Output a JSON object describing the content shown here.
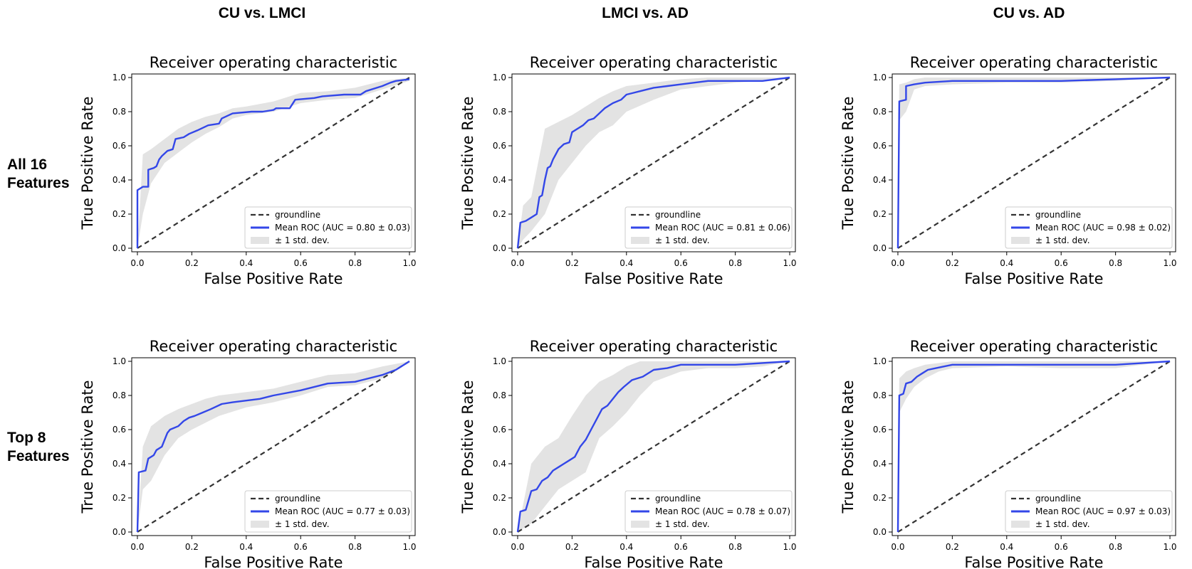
{
  "figure": {
    "column_titles": [
      "CU vs. LMCI",
      "LMCI vs. AD",
      "CU vs. AD"
    ],
    "row_labels": [
      [
        "All 16",
        "Features"
      ],
      [
        "Top 8",
        "Features"
      ]
    ]
  },
  "colors": {
    "mean_roc": "#3347e8",
    "groundline": "#333333",
    "std_band": "#e3e3e3"
  },
  "chart_data": [
    {
      "type": "line",
      "title": "Receiver operating characteristic",
      "xlabel": "False Positive Rate",
      "ylabel": "True Positive Rate",
      "xlim": [
        0,
        1
      ],
      "ylim": [
        0,
        1
      ],
      "xticks": [
        "0.0",
        "0.2",
        "0.4",
        "0.6",
        "0.8",
        "1.0"
      ],
      "yticks": [
        "0.0",
        "0.2",
        "0.4",
        "0.6",
        "0.8",
        "1.0"
      ],
      "legend_position": "lower-right",
      "series": [
        {
          "name": "groundline",
          "style": "dashed",
          "x": [
            0,
            1
          ],
          "y": [
            0,
            1
          ]
        },
        {
          "name": "Mean ROC (AUC = 0.80 ± 0.03)",
          "x": [
            0,
            0,
            0.02,
            0.04,
            0.04,
            0.06,
            0.07,
            0.08,
            0.09,
            0.11,
            0.13,
            0.14,
            0.17,
            0.19,
            0.22,
            0.26,
            0.3,
            0.31,
            0.35,
            0.42,
            0.46,
            0.5,
            0.51,
            0.56,
            0.58,
            0.65,
            0.68,
            0.76,
            0.82,
            0.84,
            0.9,
            0.93,
            0.95,
            1.0
          ],
          "y": [
            0,
            0.34,
            0.36,
            0.36,
            0.46,
            0.47,
            0.48,
            0.52,
            0.54,
            0.57,
            0.58,
            0.64,
            0.65,
            0.67,
            0.69,
            0.72,
            0.73,
            0.76,
            0.79,
            0.8,
            0.8,
            0.81,
            0.82,
            0.82,
            0.87,
            0.88,
            0.89,
            0.9,
            0.9,
            0.92,
            0.95,
            0.97,
            0.98,
            0.99
          ]
        },
        {
          "name": "± 1 std. dev.",
          "type": "band",
          "x": [
            0,
            0.02,
            0.05,
            0.1,
            0.15,
            0.2,
            0.25,
            0.3,
            0.35,
            0.4,
            0.5,
            0.6,
            0.7,
            0.8,
            0.9,
            1.0
          ],
          "lower": [
            0,
            0.2,
            0.38,
            0.5,
            0.56,
            0.62,
            0.67,
            0.71,
            0.76,
            0.78,
            0.8,
            0.85,
            0.87,
            0.88,
            0.93,
            0.98
          ],
          "upper": [
            0,
            0.55,
            0.58,
            0.64,
            0.7,
            0.74,
            0.77,
            0.79,
            0.82,
            0.83,
            0.86,
            0.91,
            0.92,
            0.94,
            0.98,
            1.0
          ]
        }
      ]
    },
    {
      "type": "line",
      "title": "Receiver operating characteristic",
      "xlabel": "False Positive Rate",
      "ylabel": "True Positive Rate",
      "xlim": [
        0,
        1
      ],
      "ylim": [
        0,
        1
      ],
      "xticks": [
        "0.0",
        "0.2",
        "0.4",
        "0.6",
        "0.8",
        "1.0"
      ],
      "yticks": [
        "0.0",
        "0.2",
        "0.4",
        "0.6",
        "0.8",
        "1.0"
      ],
      "legend_position": "lower-right",
      "series": [
        {
          "name": "groundline",
          "style": "dashed",
          "x": [
            0,
            1
          ],
          "y": [
            0,
            1
          ]
        },
        {
          "name": "Mean ROC (AUC = 0.81 ± 0.06)",
          "x": [
            0,
            0.01,
            0.03,
            0.05,
            0.07,
            0.08,
            0.09,
            0.1,
            0.11,
            0.12,
            0.13,
            0.14,
            0.15,
            0.17,
            0.19,
            0.2,
            0.22,
            0.24,
            0.26,
            0.28,
            0.3,
            0.32,
            0.35,
            0.38,
            0.4,
            0.45,
            0.5,
            0.55,
            0.6,
            0.7,
            0.76,
            0.9,
            1.0
          ],
          "y": [
            0,
            0.15,
            0.16,
            0.18,
            0.2,
            0.3,
            0.31,
            0.4,
            0.47,
            0.48,
            0.52,
            0.55,
            0.58,
            0.61,
            0.62,
            0.68,
            0.7,
            0.72,
            0.75,
            0.76,
            0.79,
            0.82,
            0.85,
            0.87,
            0.9,
            0.92,
            0.94,
            0.95,
            0.96,
            0.98,
            0.98,
            0.98,
            1.0
          ]
        },
        {
          "name": "± 1 std. dev.",
          "type": "band",
          "x": [
            0,
            0.02,
            0.05,
            0.1,
            0.15,
            0.2,
            0.25,
            0.3,
            0.35,
            0.4,
            0.5,
            0.6,
            0.7,
            0.8,
            0.9,
            1.0
          ],
          "lower": [
            0,
            0.05,
            0.1,
            0.2,
            0.4,
            0.5,
            0.6,
            0.68,
            0.72,
            0.8,
            0.87,
            0.93,
            0.95,
            0.97,
            0.98,
            1.0
          ],
          "upper": [
            0,
            0.25,
            0.3,
            0.7,
            0.74,
            0.78,
            0.83,
            0.88,
            0.92,
            0.95,
            0.97,
            0.99,
            1.0,
            1.0,
            1.0,
            1.0
          ]
        }
      ]
    },
    {
      "type": "line",
      "title": "Receiver operating characteristic",
      "xlabel": "False Positive Rate",
      "ylabel": "True Positive Rate",
      "xlim": [
        0,
        1
      ],
      "ylim": [
        0,
        1
      ],
      "xticks": [
        "0.0",
        "0.2",
        "0.4",
        "0.6",
        "0.8",
        "1.0"
      ],
      "yticks": [
        "0.0",
        "0.2",
        "0.4",
        "0.6",
        "0.8",
        "1.0"
      ],
      "legend_position": "lower-right",
      "series": [
        {
          "name": "groundline",
          "style": "dashed",
          "x": [
            0,
            1
          ],
          "y": [
            0,
            1
          ]
        },
        {
          "name": "Mean ROC (AUC = 0.98 ± 0.02)",
          "x": [
            0,
            0.005,
            0.03,
            0.03,
            0.06,
            0.1,
            0.2,
            0.4,
            0.6,
            0.8,
            1.0
          ],
          "y": [
            0,
            0.86,
            0.87,
            0.95,
            0.96,
            0.97,
            0.98,
            0.98,
            0.98,
            0.99,
            1.0
          ]
        },
        {
          "name": "± 1 std. dev.",
          "type": "band",
          "x": [
            0,
            0.005,
            0.03,
            0.06,
            0.1,
            0.2,
            0.4,
            0.6,
            0.8,
            1.0
          ],
          "lower": [
            0,
            0.75,
            0.8,
            0.93,
            0.95,
            0.96,
            0.97,
            0.97,
            0.98,
            1.0
          ],
          "upper": [
            0,
            0.96,
            0.97,
            0.99,
            1.0,
            1.0,
            1.0,
            1.0,
            1.0,
            1.0
          ]
        }
      ]
    },
    {
      "type": "line",
      "title": "Receiver operating characteristic",
      "xlabel": "False Positive Rate",
      "ylabel": "True Positive Rate",
      "xlim": [
        0,
        1
      ],
      "ylim": [
        0,
        1
      ],
      "xticks": [
        "0.0",
        "0.2",
        "0.4",
        "0.6",
        "0.8",
        "1.0"
      ],
      "yticks": [
        "0.0",
        "0.2",
        "0.4",
        "0.6",
        "0.8",
        "1.0"
      ],
      "legend_position": "lower-right",
      "series": [
        {
          "name": "groundline",
          "style": "dashed",
          "x": [
            0,
            1
          ],
          "y": [
            0,
            1
          ]
        },
        {
          "name": "Mean ROC (AUC = 0.77 ± 0.03)",
          "x": [
            0,
            0.005,
            0.03,
            0.04,
            0.06,
            0.07,
            0.09,
            0.11,
            0.12,
            0.15,
            0.17,
            0.19,
            0.21,
            0.24,
            0.27,
            0.31,
            0.35,
            0.4,
            0.45,
            0.5,
            0.6,
            0.7,
            0.8,
            0.9,
            0.95,
            1.0
          ],
          "y": [
            0,
            0.35,
            0.36,
            0.43,
            0.45,
            0.48,
            0.5,
            0.58,
            0.6,
            0.62,
            0.65,
            0.67,
            0.68,
            0.7,
            0.72,
            0.75,
            0.76,
            0.77,
            0.78,
            0.8,
            0.83,
            0.87,
            0.88,
            0.92,
            0.95,
            1.0
          ]
        },
        {
          "name": "± 1 std. dev.",
          "type": "band",
          "x": [
            0,
            0.02,
            0.05,
            0.1,
            0.15,
            0.2,
            0.25,
            0.3,
            0.4,
            0.5,
            0.6,
            0.7,
            0.8,
            0.9,
            1.0
          ],
          "lower": [
            0,
            0.25,
            0.3,
            0.45,
            0.55,
            0.6,
            0.64,
            0.68,
            0.73,
            0.76,
            0.8,
            0.85,
            0.86,
            0.9,
            1.0
          ],
          "upper": [
            0,
            0.5,
            0.62,
            0.68,
            0.72,
            0.75,
            0.78,
            0.8,
            0.82,
            0.84,
            0.88,
            0.92,
            0.93,
            0.97,
            1.0
          ]
        }
      ]
    },
    {
      "type": "line",
      "title": "Receiver operating characteristic",
      "xlabel": "False Positive Rate",
      "ylabel": "True Positive Rate",
      "xlim": [
        0,
        1
      ],
      "ylim": [
        0,
        1
      ],
      "xticks": [
        "0.0",
        "0.2",
        "0.4",
        "0.6",
        "0.8",
        "1.0"
      ],
      "yticks": [
        "0.0",
        "0.2",
        "0.4",
        "0.6",
        "0.8",
        "1.0"
      ],
      "legend_position": "lower-right",
      "series": [
        {
          "name": "groundline",
          "style": "dashed",
          "x": [
            0,
            1
          ],
          "y": [
            0,
            1
          ]
        },
        {
          "name": "Mean ROC (AUC = 0.78 ± 0.07)",
          "x": [
            0,
            0.01,
            0.03,
            0.05,
            0.07,
            0.09,
            0.11,
            0.13,
            0.15,
            0.17,
            0.19,
            0.21,
            0.23,
            0.25,
            0.27,
            0.29,
            0.31,
            0.33,
            0.35,
            0.37,
            0.39,
            0.42,
            0.46,
            0.5,
            0.55,
            0.6,
            0.7,
            0.8,
            1.0
          ],
          "y": [
            0,
            0.12,
            0.13,
            0.24,
            0.25,
            0.3,
            0.32,
            0.36,
            0.38,
            0.4,
            0.42,
            0.44,
            0.5,
            0.54,
            0.6,
            0.66,
            0.72,
            0.74,
            0.78,
            0.82,
            0.85,
            0.89,
            0.91,
            0.95,
            0.96,
            0.98,
            0.98,
            0.98,
            1.0
          ]
        },
        {
          "name": "± 1 std. dev.",
          "type": "band",
          "x": [
            0,
            0.05,
            0.1,
            0.15,
            0.2,
            0.25,
            0.3,
            0.35,
            0.4,
            0.45,
            0.5,
            0.6,
            0.7,
            0.8,
            0.9,
            1.0
          ],
          "lower": [
            0,
            0.05,
            0.15,
            0.25,
            0.3,
            0.35,
            0.55,
            0.62,
            0.7,
            0.8,
            0.88,
            0.94,
            0.96,
            0.96,
            0.97,
            1.0
          ],
          "upper": [
            0,
            0.4,
            0.5,
            0.55,
            0.68,
            0.8,
            0.88,
            0.92,
            0.97,
            1.0,
            1.0,
            1.0,
            1.0,
            1.0,
            1.0,
            1.0
          ]
        }
      ]
    },
    {
      "type": "line",
      "title": "Receiver operating characteristic",
      "xlabel": "False Positive Rate",
      "ylabel": "True Positive Rate",
      "xlim": [
        0,
        1
      ],
      "ylim": [
        0,
        1
      ],
      "xticks": [
        "0.0",
        "0.2",
        "0.4",
        "0.6",
        "0.8",
        "1.0"
      ],
      "yticks": [
        "0.0",
        "0.2",
        "0.4",
        "0.6",
        "0.8",
        "1.0"
      ],
      "legend_position": "lower-right",
      "series": [
        {
          "name": "groundline",
          "style": "dashed",
          "x": [
            0,
            1
          ],
          "y": [
            0,
            1
          ]
        },
        {
          "name": "Mean ROC (AUC = 0.97 ± 0.03)",
          "x": [
            0,
            0.005,
            0.02,
            0.03,
            0.05,
            0.07,
            0.09,
            0.11,
            0.14,
            0.17,
            0.2,
            0.4,
            0.6,
            0.8,
            0.9,
            1.0
          ],
          "y": [
            0,
            0.8,
            0.81,
            0.87,
            0.88,
            0.91,
            0.93,
            0.95,
            0.96,
            0.97,
            0.98,
            0.98,
            0.98,
            0.98,
            0.99,
            1.0
          ]
        },
        {
          "name": "± 1 std. dev.",
          "type": "band",
          "x": [
            0,
            0.005,
            0.03,
            0.06,
            0.1,
            0.15,
            0.2,
            0.4,
            0.6,
            0.8,
            0.9,
            1.0
          ],
          "lower": [
            0,
            0.7,
            0.78,
            0.85,
            0.9,
            0.94,
            0.96,
            0.97,
            0.96,
            0.96,
            0.98,
            1.0
          ],
          "upper": [
            0,
            0.9,
            0.94,
            0.96,
            0.98,
            0.99,
            1.0,
            1.0,
            1.0,
            1.0,
            1.0,
            1.0
          ]
        }
      ]
    }
  ]
}
